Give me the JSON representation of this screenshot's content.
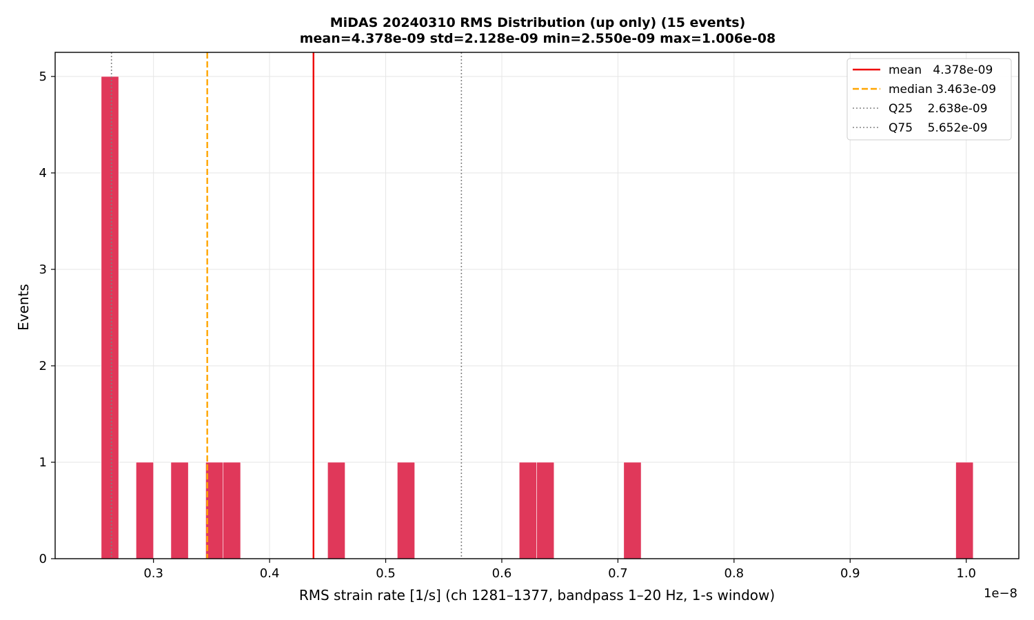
{
  "chart_data": {
    "type": "bar",
    "title": "MiDAS 20240310  RMS Distribution  (up only)  (15 events)",
    "subtitle": "mean=4.378e-09  std=2.128e-09  min=2.550e-09  max=1.006e-08",
    "xlabel": "RMS strain rate [1/s]  (ch 1281–1377, bandpass 1–20 Hz, 1-s window)",
    "ylabel": "Events",
    "x_offset_label": "1e−8",
    "xlim": [
      0.2153,
      1.0453
    ],
    "ylim": [
      0,
      5.25
    ],
    "x_ticks": [
      0.3,
      0.4,
      0.5,
      0.6,
      0.7,
      0.8,
      0.9,
      1.0
    ],
    "x_tick_labels": [
      "0.3",
      "0.4",
      "0.5",
      "0.6",
      "0.7",
      "0.8",
      "0.9",
      "1.0"
    ],
    "y_ticks": [
      0,
      1,
      2,
      3,
      4,
      5
    ],
    "y_tick_labels": [
      "0",
      "1",
      "2",
      "3",
      "4",
      "5"
    ],
    "grid": true,
    "bar_color": "#e0385a",
    "bin_width": 0.01502,
    "bins": [
      {
        "x0": 0.255,
        "x1": 0.27,
        "count": 5
      },
      {
        "x0": 0.285,
        "x1": 0.3,
        "count": 1
      },
      {
        "x0": 0.315,
        "x1": 0.33,
        "count": 1
      },
      {
        "x0": 0.345,
        "x1": 0.36,
        "count": 1
      },
      {
        "x0": 0.36,
        "x1": 0.375,
        "count": 1
      },
      {
        "x0": 0.45,
        "x1": 0.465,
        "count": 1
      },
      {
        "x0": 0.51,
        "x1": 0.525,
        "count": 1
      },
      {
        "x0": 0.615,
        "x1": 0.63,
        "count": 1
      },
      {
        "x0": 0.63,
        "x1": 0.645,
        "count": 1
      },
      {
        "x0": 0.705,
        "x1": 0.72,
        "count": 1
      },
      {
        "x0": 0.991,
        "x1": 1.006,
        "count": 1
      }
    ],
    "reference_lines": [
      {
        "name": "mean",
        "value_label": "4.378e-09",
        "x": 0.4378,
        "color": "#ee0000",
        "style": "solid"
      },
      {
        "name": "median",
        "value_label": "3.463e-09",
        "x": 0.3463,
        "color": "#ffa500",
        "style": "dashed"
      },
      {
        "name": "Q25",
        "value_label": "2.638e-09",
        "x": 0.2638,
        "color": "#808080",
        "style": "dotted"
      },
      {
        "name": "Q75",
        "value_label": "5.652e-09",
        "x": 0.5652,
        "color": "#808080",
        "style": "dotted"
      }
    ],
    "legend_position": "top-right",
    "legend": [
      {
        "label": "mean   4.378e-09"
      },
      {
        "label": "median 3.463e-09"
      },
      {
        "label": "Q25    2.638e-09"
      },
      {
        "label": "Q75    5.652e-09"
      }
    ]
  }
}
